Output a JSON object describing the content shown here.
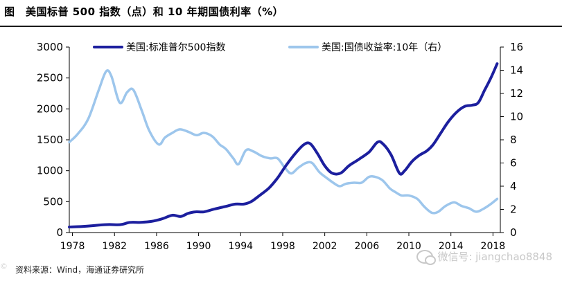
{
  "figure": {
    "title": "图　美国标普 500 指数（点）和  10 年期国债利率（%）",
    "source": "资料来源：Wind，海通证券研究所",
    "watermark": "微信号: jiangchao8848",
    "watermark_left": "©"
  },
  "chart_data": {
    "type": "line",
    "x_ticks": [
      "1978",
      "1982",
      "1986",
      "1990",
      "1994",
      "1998",
      "2002",
      "2006",
      "2010",
      "2014",
      "2018"
    ],
    "xlim": [
      1977.7,
      2018.7
    ],
    "y_left": {
      "ticks": [
        "3000",
        "2500",
        "2000",
        "1500",
        "1000",
        "500",
        "0"
      ],
      "ylim": [
        0,
        3000
      ]
    },
    "y_right": {
      "ticks": [
        "16",
        "14",
        "12",
        "10",
        "8",
        "6",
        "4",
        "2",
        "0"
      ],
      "ylim": [
        0,
        16
      ]
    },
    "series": [
      {
        "name": "美国:标准普尔500指数",
        "axis": "left",
        "color": "#1c1f9e",
        "x": [
          1977.7,
          1978.5,
          1979.5,
          1980.5,
          1981.5,
          1982.3,
          1982.8,
          1983.5,
          1984.5,
          1985.5,
          1986.5,
          1987.5,
          1988.3,
          1989,
          1989.7,
          1990.5,
          1991.5,
          1992.5,
          1993.5,
          1994.3,
          1995,
          1995.8,
          1996.7,
          1997.5,
          1998.3,
          1999.2,
          2000,
          2000.6,
          2001.3,
          2002,
          2002.7,
          2003.5,
          2004.3,
          2005.2,
          2006.2,
          2007,
          2007.5,
          2008.3,
          2009.1,
          2009.6,
          2010.3,
          2011,
          2011.7,
          2012.3,
          2013,
          2013.7,
          2014.5,
          2015.3,
          2016,
          2016.6,
          2017.2,
          2017.8,
          2018.4
        ],
        "values": [
          90,
          95,
          105,
          120,
          130,
          125,
          135,
          165,
          165,
          180,
          220,
          280,
          260,
          310,
          335,
          335,
          380,
          420,
          460,
          460,
          500,
          600,
          720,
          880,
          1080,
          1280,
          1420,
          1440,
          1280,
          1080,
          960,
          960,
          1080,
          1180,
          1300,
          1460,
          1440,
          1260,
          960,
          1000,
          1150,
          1250,
          1320,
          1420,
          1600,
          1780,
          1940,
          2040,
          2060,
          2100,
          2300,
          2500,
          2730
        ]
      },
      {
        "name": "美国:国债收益率:10年（右）",
        "axis": "right",
        "color": "#9dc6ec",
        "x": [
          1977.7,
          1978.5,
          1979.5,
          1980.5,
          1981.2,
          1981.7,
          1982.5,
          1983.2,
          1983.8,
          1984.6,
          1985.3,
          1986.2,
          1986.8,
          1987.5,
          1988.2,
          1989,
          1989.8,
          1990.5,
          1991.3,
          1992,
          1992.6,
          1993.3,
          1993.8,
          1994.5,
          1995.2,
          1996,
          1996.8,
          1997.5,
          1998.2,
          1998.8,
          1999.5,
          2000.2,
          2000.8,
          2001.5,
          2002.2,
          2002.8,
          2003.4,
          2004,
          2004.8,
          2005.5,
          2006.2,
          2006.8,
          2007.5,
          2008.2,
          2008.7,
          2009.3,
          2010,
          2010.8,
          2011.5,
          2012.2,
          2012.8,
          2013.5,
          2014.3,
          2015,
          2015.7,
          2016.4,
          2017,
          2017.7,
          2018.4
        ],
        "values": [
          7.8,
          8.5,
          9.8,
          12.3,
          13.9,
          13.5,
          11.2,
          12.1,
          12.3,
          10.5,
          8.8,
          7.6,
          8.2,
          8.6,
          8.9,
          8.7,
          8.4,
          8.6,
          8.3,
          7.6,
          7.2,
          6.4,
          5.9,
          7.1,
          7.0,
          6.6,
          6.4,
          6.4,
          5.6,
          5.1,
          5.6,
          6.0,
          6.0,
          5.2,
          4.7,
          4.3,
          4.0,
          4.2,
          4.3,
          4.3,
          4.8,
          4.8,
          4.5,
          3.8,
          3.5,
          3.2,
          3.2,
          2.9,
          2.2,
          1.7,
          1.8,
          2.3,
          2.6,
          2.3,
          2.1,
          1.8,
          2.0,
          2.4,
          2.9
        ]
      }
    ]
  }
}
